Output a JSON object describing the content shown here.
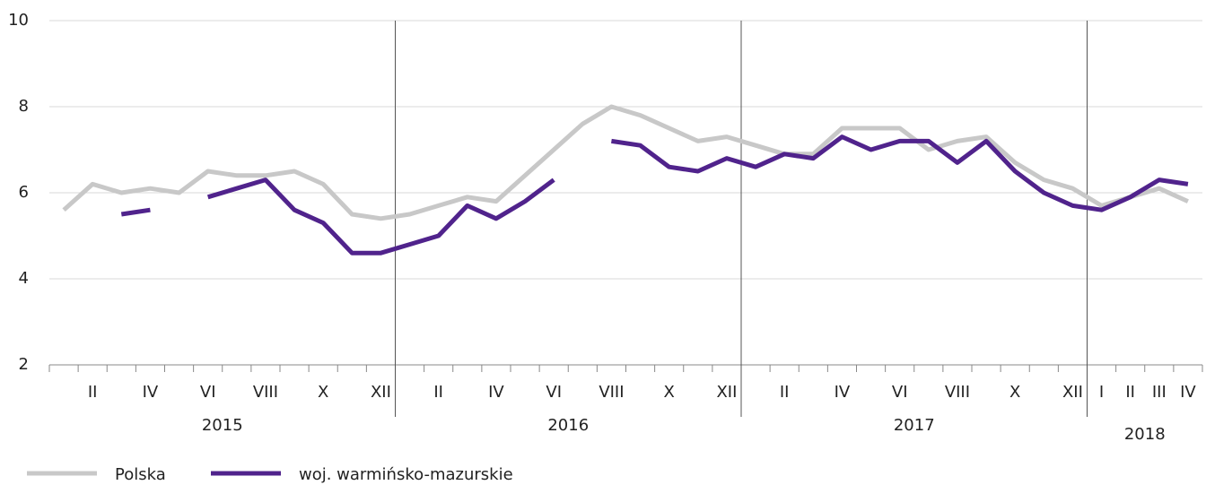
{
  "chart_data": {
    "type": "line",
    "categories": [
      null,
      "II",
      null,
      "IV",
      null,
      "VI",
      null,
      "VIII",
      null,
      "X",
      null,
      "XII",
      null,
      "II",
      null,
      "IV",
      null,
      "VI",
      null,
      "VIII",
      null,
      "X",
      null,
      "XII",
      null,
      "II",
      null,
      "IV",
      null,
      "VI",
      null,
      "VIII",
      null,
      "X",
      null,
      "XII",
      "I",
      "II",
      "III",
      "IV"
    ],
    "years": [
      "2015",
      "2016",
      "2017",
      "2018"
    ],
    "series": [
      {
        "name": "Polska",
        "color": "#c8c8c8",
        "values": [
          5.6,
          6.2,
          6.0,
          6.1,
          6.0,
          6.5,
          6.4,
          6.4,
          6.5,
          6.2,
          5.5,
          5.4,
          5.5,
          5.7,
          5.9,
          5.8,
          6.4,
          7.0,
          7.6,
          8.0,
          7.8,
          7.5,
          7.2,
          7.3,
          7.1,
          6.9,
          6.9,
          7.5,
          7.5,
          7.5,
          7.0,
          7.2,
          7.3,
          6.7,
          6.3,
          6.1,
          5.7,
          5.9,
          6.1,
          5.8
        ]
      },
      {
        "name": "woj. warmińsko-mazurskie",
        "color": "#50238c",
        "values": [
          null,
          null,
          5.5,
          5.6,
          null,
          5.9,
          6.1,
          6.3,
          5.6,
          5.3,
          4.6,
          4.6,
          4.8,
          5.0,
          5.7,
          5.4,
          5.8,
          6.3,
          null,
          7.2,
          7.1,
          6.6,
          6.5,
          6.8,
          6.6,
          6.9,
          6.8,
          7.3,
          7.0,
          7.2,
          7.2,
          6.7,
          7.2,
          6.5,
          6.0,
          5.7,
          5.6,
          5.9,
          6.3,
          6.2
        ]
      }
    ],
    "ylim": [
      2,
      10
    ],
    "yticks": [
      2,
      4,
      6,
      8,
      10
    ],
    "grid": true,
    "legend": "bottom"
  }
}
